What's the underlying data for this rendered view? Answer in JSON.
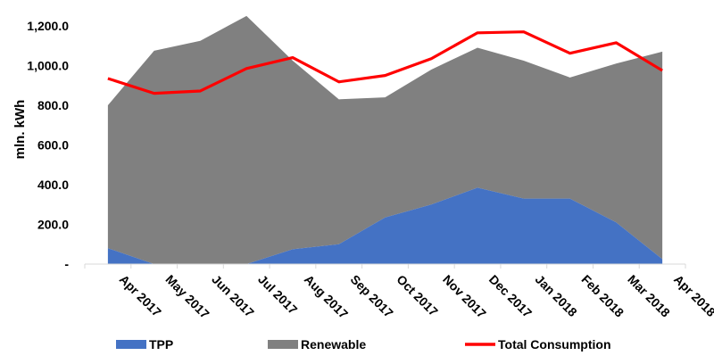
{
  "chart_data": {
    "type": "area",
    "title": "",
    "xlabel": "",
    "ylabel": "mln. kWh",
    "ylim": [
      0,
      1200
    ],
    "yticks": [
      0,
      200,
      400,
      600,
      800,
      1000,
      1200
    ],
    "ytick_labels": [
      "-",
      "200.0",
      "400.0",
      "600.0",
      "800.0",
      "1,000.0",
      "1,200.0"
    ],
    "categories": [
      "Apr 2017",
      "May 2017",
      "Jun 2017",
      "Jul 2017",
      "Aug 2017",
      "Sep 2017",
      "Oct 2017",
      "Nov 2017",
      "Dec 2017",
      "Jan 2018",
      "Feb 2018",
      "Mar 2018",
      "Apr 2018"
    ],
    "stacked": true,
    "series": [
      {
        "name": "TPP",
        "kind": "area",
        "color": "#4472C4",
        "values": [
          80,
          0,
          0,
          0,
          75,
          100,
          235,
          300,
          385,
          330,
          330,
          210,
          25
        ]
      },
      {
        "name": "Renewable",
        "kind": "area",
        "color": "#808080",
        "values": [
          720,
          1075,
          1125,
          1250,
          950,
          730,
          605,
          680,
          705,
          695,
          610,
          800,
          1045
        ]
      },
      {
        "name": "Total Consumption",
        "kind": "line",
        "color": "#FF0000",
        "values": [
          935,
          860,
          872,
          985,
          1040,
          918,
          950,
          1035,
          1165,
          1170,
          1062,
          1115,
          975
        ]
      }
    ],
    "legend_position": "bottom"
  }
}
